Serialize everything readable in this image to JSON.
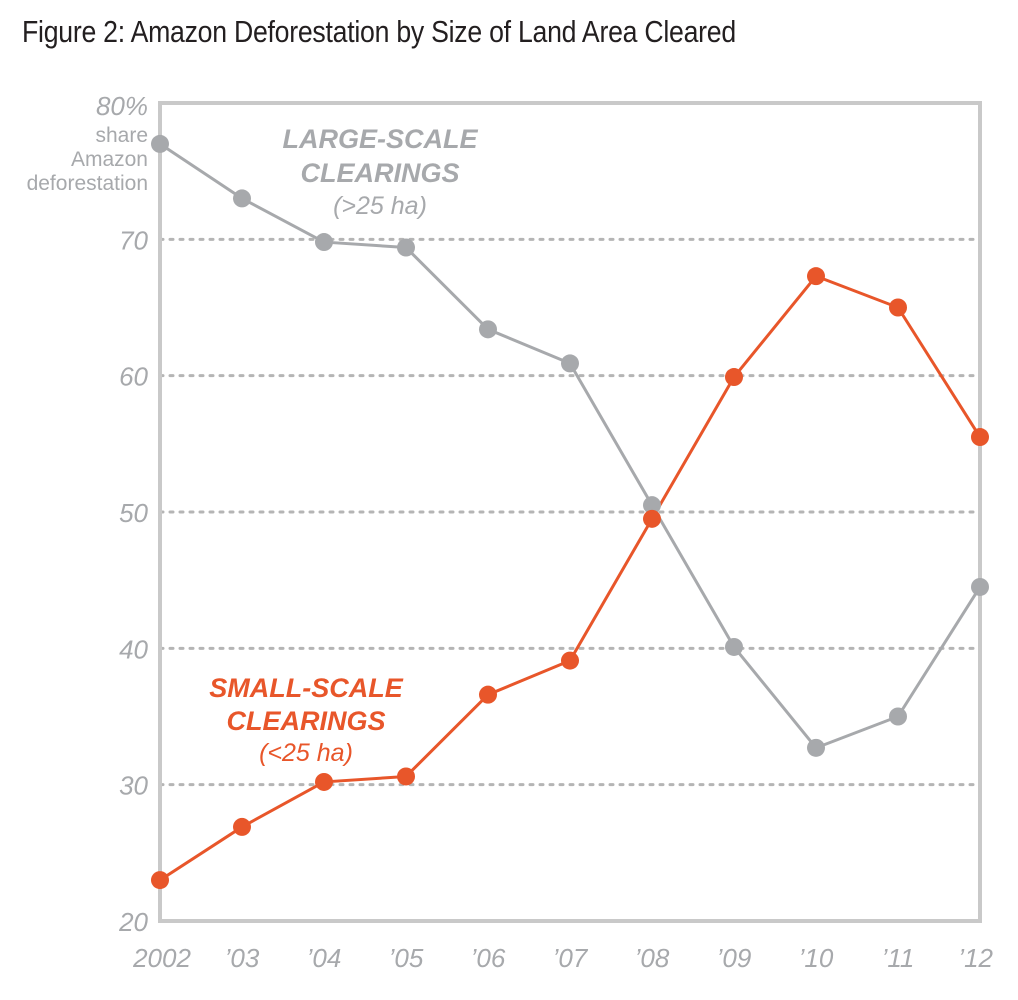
{
  "title": "Figure 2: Amazon Deforestation by Size of Land Area Cleared",
  "colors": {
    "large": "#a7a9ac",
    "small": "#e8562a",
    "frame": "#c9c9c9",
    "grid": "#b5b5b5"
  },
  "chart_data": {
    "type": "line",
    "x": [
      "2002",
      "’03",
      "’04",
      "’05",
      "’06",
      "’07",
      "’08",
      "’09",
      "’10",
      "’11",
      "’12"
    ],
    "ylim": [
      20,
      80
    ],
    "yticks": [
      20,
      30,
      40,
      50,
      60,
      70
    ],
    "ytick_labels": [
      "20",
      "30",
      "40",
      "50",
      "60",
      "70"
    ],
    "ylabel_top": "80%",
    "ylabel_lines": [
      "share",
      "Amazon",
      "deforestation"
    ],
    "grid": "horizontal dotted",
    "series": [
      {
        "key": "large",
        "values": [
          77.0,
          73.0,
          69.8,
          69.4,
          63.4,
          60.9,
          50.5,
          40.1,
          32.7,
          35.0,
          44.5
        ],
        "label_lines": [
          "LARGE-SCALE",
          "CLEARINGS"
        ],
        "label_sub": "(>25 ha)"
      },
      {
        "key": "small",
        "values": [
          23.0,
          26.9,
          30.2,
          30.6,
          36.6,
          39.1,
          49.5,
          59.9,
          67.3,
          65.0,
          55.5
        ],
        "label_lines": [
          "SMALL-SCALE",
          "CLEARINGS"
        ],
        "label_sub": "(<25 ha)"
      }
    ]
  }
}
